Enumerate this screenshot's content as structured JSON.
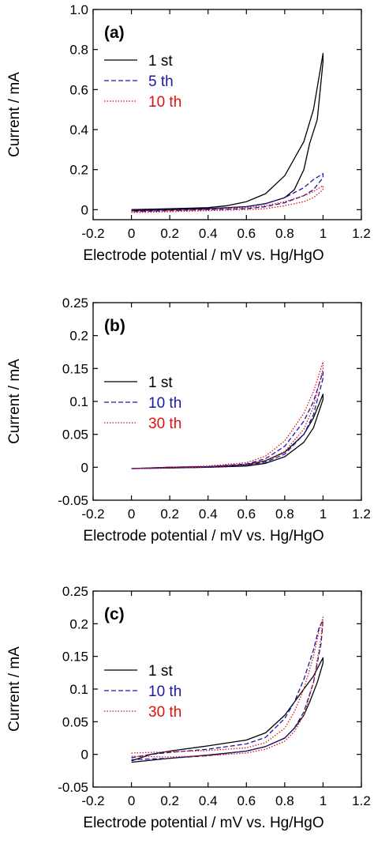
{
  "chart_data": [
    {
      "type": "line",
      "panel_label": "(a)",
      "xlabel": "Electrode potential / mV vs. Hg/HgO",
      "ylabel": "Current / mA",
      "xlim": [
        -0.2,
        1.2
      ],
      "ylim": [
        -0.05,
        1.0
      ],
      "xticks": [
        -0.2,
        0,
        0.2,
        0.4,
        0.6,
        0.8,
        1,
        1.2
      ],
      "xtick_labels": [
        "-0.2",
        "0",
        "0.2",
        "0.4",
        "0.6",
        "0.8",
        "1",
        "1.2"
      ],
      "yticks": [
        0,
        0.2,
        0.4,
        0.6,
        0.8,
        1.0
      ],
      "ytick_labels": [
        "0",
        "0.2",
        "0.4",
        "0.6",
        "0.8",
        "1.0"
      ],
      "grid": false,
      "legend_position": "top-left",
      "series": [
        {
          "name": "1 st",
          "color": "#000000",
          "dash": "solid",
          "x": [
            0,
            0.2,
            0.4,
            0.5,
            0.6,
            0.7,
            0.8,
            0.9,
            0.95,
            1.0,
            1.0,
            0.97,
            0.93,
            0.9,
            0.85,
            0.8,
            0.7,
            0.6,
            0.4,
            0.2,
            0
          ],
          "y": [
            0.0,
            0.005,
            0.01,
            0.02,
            0.04,
            0.08,
            0.17,
            0.34,
            0.5,
            0.78,
            0.74,
            0.45,
            0.33,
            0.2,
            0.1,
            0.06,
            0.03,
            0.015,
            0.005,
            0.0,
            -0.005
          ]
        },
        {
          "name": "5 th",
          "color": "#1a1aaa",
          "dash": "dashed",
          "x": [
            0,
            0.2,
            0.4,
            0.6,
            0.7,
            0.8,
            0.9,
            0.95,
            1.0,
            1.0,
            0.95,
            0.9,
            0.8,
            0.7,
            0.6,
            0.4,
            0.2,
            0
          ],
          "y": [
            -0.005,
            0.0,
            0.005,
            0.015,
            0.03,
            0.06,
            0.11,
            0.15,
            0.18,
            0.16,
            0.1,
            0.07,
            0.035,
            0.015,
            0.005,
            0.0,
            -0.005,
            -0.01
          ]
        },
        {
          "name": "10 th",
          "color": "#dd1111",
          "dash": "dotted",
          "x": [
            0,
            0.2,
            0.4,
            0.6,
            0.7,
            0.8,
            0.9,
            0.95,
            1.0,
            1.0,
            0.95,
            0.9,
            0.8,
            0.7,
            0.6,
            0.4,
            0.2,
            0
          ],
          "y": [
            -0.01,
            -0.005,
            0.0,
            0.01,
            0.02,
            0.04,
            0.07,
            0.09,
            0.12,
            0.1,
            0.06,
            0.04,
            0.02,
            0.005,
            0.0,
            -0.005,
            -0.01,
            -0.015
          ]
        }
      ]
    },
    {
      "type": "line",
      "panel_label": "(b)",
      "xlabel": "Electrode potential / mV vs. Hg/HgO",
      "ylabel": "Current / mA",
      "xlim": [
        -0.2,
        1.2
      ],
      "ylim": [
        -0.05,
        0.25
      ],
      "xticks": [
        -0.2,
        0,
        0.2,
        0.4,
        0.6,
        0.8,
        1,
        1.2
      ],
      "xtick_labels": [
        "-0.2",
        "0",
        "0.2",
        "0.4",
        "0.6",
        "0.8",
        "1",
        "1.2"
      ],
      "yticks": [
        -0.05,
        0,
        0.05,
        0.1,
        0.15,
        0.2,
        0.25
      ],
      "ytick_labels": [
        "-0.05",
        "0",
        "0.05",
        "0.1",
        "0.15",
        "0.2",
        "0.25"
      ],
      "grid": false,
      "legend_position": "middle-left",
      "series": [
        {
          "name": "1 st",
          "color": "#000000",
          "dash": "solid",
          "x": [
            0,
            0.2,
            0.4,
            0.6,
            0.7,
            0.8,
            0.9,
            0.95,
            1.0,
            1.0,
            0.95,
            0.9,
            0.8,
            0.7,
            0.6,
            0.4,
            0.2,
            0
          ],
          "y": [
            -0.002,
            0.0,
            0.001,
            0.004,
            0.01,
            0.023,
            0.05,
            0.075,
            0.111,
            0.103,
            0.06,
            0.038,
            0.016,
            0.006,
            0.002,
            0.0,
            -0.001,
            -0.002
          ]
        },
        {
          "name": "10 th",
          "color": "#1a1aaa",
          "dash": "dashed",
          "x": [
            0,
            0.2,
            0.4,
            0.6,
            0.7,
            0.8,
            0.9,
            0.95,
            1.0,
            1.0,
            0.95,
            0.9,
            0.8,
            0.7,
            0.6,
            0.4,
            0.2,
            0
          ],
          "y": [
            -0.002,
            0.0,
            0.001,
            0.005,
            0.013,
            0.032,
            0.07,
            0.1,
            0.145,
            0.135,
            0.08,
            0.05,
            0.02,
            0.008,
            0.003,
            0.0,
            -0.001,
            -0.002
          ]
        },
        {
          "name": "30 th",
          "color": "#dd1111",
          "dash": "dotted",
          "x": [
            0,
            0.2,
            0.4,
            0.6,
            0.7,
            0.8,
            0.9,
            0.95,
            1.0,
            1.0,
            0.95,
            0.9,
            0.8,
            0.7,
            0.6,
            0.4,
            0.2,
            0
          ],
          "y": [
            -0.002,
            0.0,
            0.002,
            0.007,
            0.017,
            0.04,
            0.082,
            0.115,
            0.16,
            0.15,
            0.092,
            0.058,
            0.024,
            0.01,
            0.004,
            0.001,
            -0.001,
            -0.002
          ]
        }
      ]
    },
    {
      "type": "line",
      "panel_label": "(c)",
      "xlabel": "Electrode potential / mV vs. Hg/HgO",
      "ylabel": "Current / mA",
      "xlim": [
        -0.2,
        1.2
      ],
      "ylim": [
        -0.05,
        0.25
      ],
      "xticks": [
        -0.2,
        0,
        0.2,
        0.4,
        0.6,
        0.8,
        1,
        1.2
      ],
      "xtick_labels": [
        "-0.2",
        "0",
        "0.2",
        "0.4",
        "0.6",
        "0.8",
        "1",
        "1.2"
      ],
      "yticks": [
        -0.05,
        0,
        0.05,
        0.1,
        0.15,
        0.2,
        0.25
      ],
      "ytick_labels": [
        "-0.05",
        "0",
        "0.05",
        "0.1",
        "0.15",
        "0.2",
        "0.25"
      ],
      "grid": false,
      "legend_position": "middle-left",
      "series": [
        {
          "name": "1 st",
          "color": "#000000",
          "dash": "solid",
          "x": [
            0,
            0.1,
            0.2,
            0.4,
            0.6,
            0.7,
            0.8,
            0.9,
            0.95,
            1.0,
            1.0,
            0.97,
            0.93,
            0.9,
            0.85,
            0.8,
            0.7,
            0.6,
            0.4,
            0.2,
            0
          ],
          "y": [
            -0.01,
            0.0,
            0.005,
            0.013,
            0.022,
            0.033,
            0.06,
            0.1,
            0.12,
            0.148,
            0.14,
            0.11,
            0.08,
            0.06,
            0.04,
            0.025,
            0.012,
            0.005,
            -0.001,
            -0.006,
            -0.012
          ]
        },
        {
          "name": "10 th",
          "color": "#1a1aaa",
          "dash": "dashed",
          "x": [
            0,
            0.1,
            0.2,
            0.4,
            0.6,
            0.7,
            0.8,
            0.85,
            0.9,
            0.95,
            0.98,
            1.0,
            0.99,
            0.95,
            0.9,
            0.85,
            0.8,
            0.7,
            0.6,
            0.4,
            0.2,
            0
          ],
          "y": [
            -0.005,
            0.0,
            0.003,
            0.008,
            0.016,
            0.026,
            0.055,
            0.08,
            0.115,
            0.16,
            0.195,
            0.205,
            0.17,
            0.11,
            0.065,
            0.04,
            0.025,
            0.012,
            0.005,
            -0.002,
            -0.006,
            -0.008
          ]
        },
        {
          "name": "30 th",
          "color": "#dd1111",
          "dash": "dotted",
          "x": [
            0,
            0.1,
            0.2,
            0.4,
            0.6,
            0.7,
            0.8,
            0.85,
            0.9,
            0.95,
            0.98,
            1.0,
            0.99,
            0.95,
            0.9,
            0.85,
            0.8,
            0.7,
            0.6,
            0.4,
            0.2,
            0
          ],
          "y": [
            0.002,
            0.003,
            0.004,
            0.006,
            0.01,
            0.018,
            0.04,
            0.065,
            0.1,
            0.15,
            0.19,
            0.21,
            0.18,
            0.11,
            0.06,
            0.035,
            0.02,
            0.008,
            0.002,
            -0.002,
            -0.004,
            -0.003
          ]
        }
      ]
    }
  ]
}
